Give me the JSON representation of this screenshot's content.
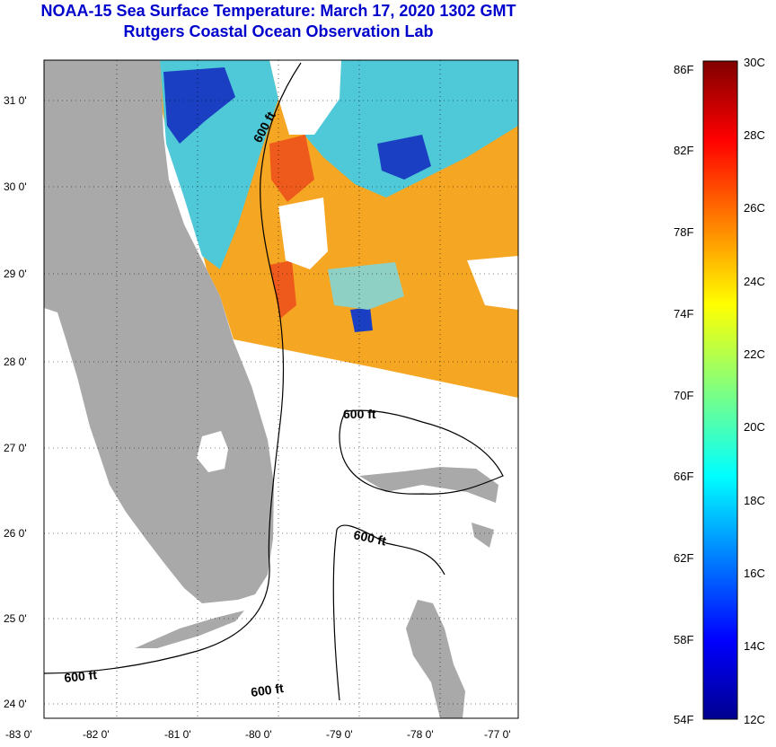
{
  "title": "NOAA-15 Sea Surface Temperature:  March 17, 2020 1302 GMT",
  "subtitle": "Rutgers Coastal Ocean Observation Lab",
  "lat_ticks": [
    "31 0'",
    "30 0'",
    "29 0'",
    "28 0'",
    "27 0'",
    "26 0'",
    "25 0'",
    "24 0'"
  ],
  "lon_ticks": [
    "-83 0'",
    "-82 0'",
    "-81 0'",
    "-80 0'",
    "-79 0'",
    "-78 0'",
    "-77 0'"
  ],
  "contour_label": "600 ft",
  "colorbar": {
    "f_labels": [
      "86F",
      "82F",
      "78F",
      "74F",
      "70F",
      "66F",
      "62F",
      "58F",
      "54F"
    ],
    "c_labels": [
      "30C",
      "28C",
      "26C",
      "24C",
      "22C",
      "20C",
      "18C",
      "16C",
      "14C",
      "12C"
    ]
  },
  "colors": {
    "land": "#a9a9a9",
    "title": "#0000cc",
    "warm": "#f5a623",
    "hot": "#ee5a1c",
    "cool": "#4fc8d8",
    "cold": "#1a3fc2"
  }
}
